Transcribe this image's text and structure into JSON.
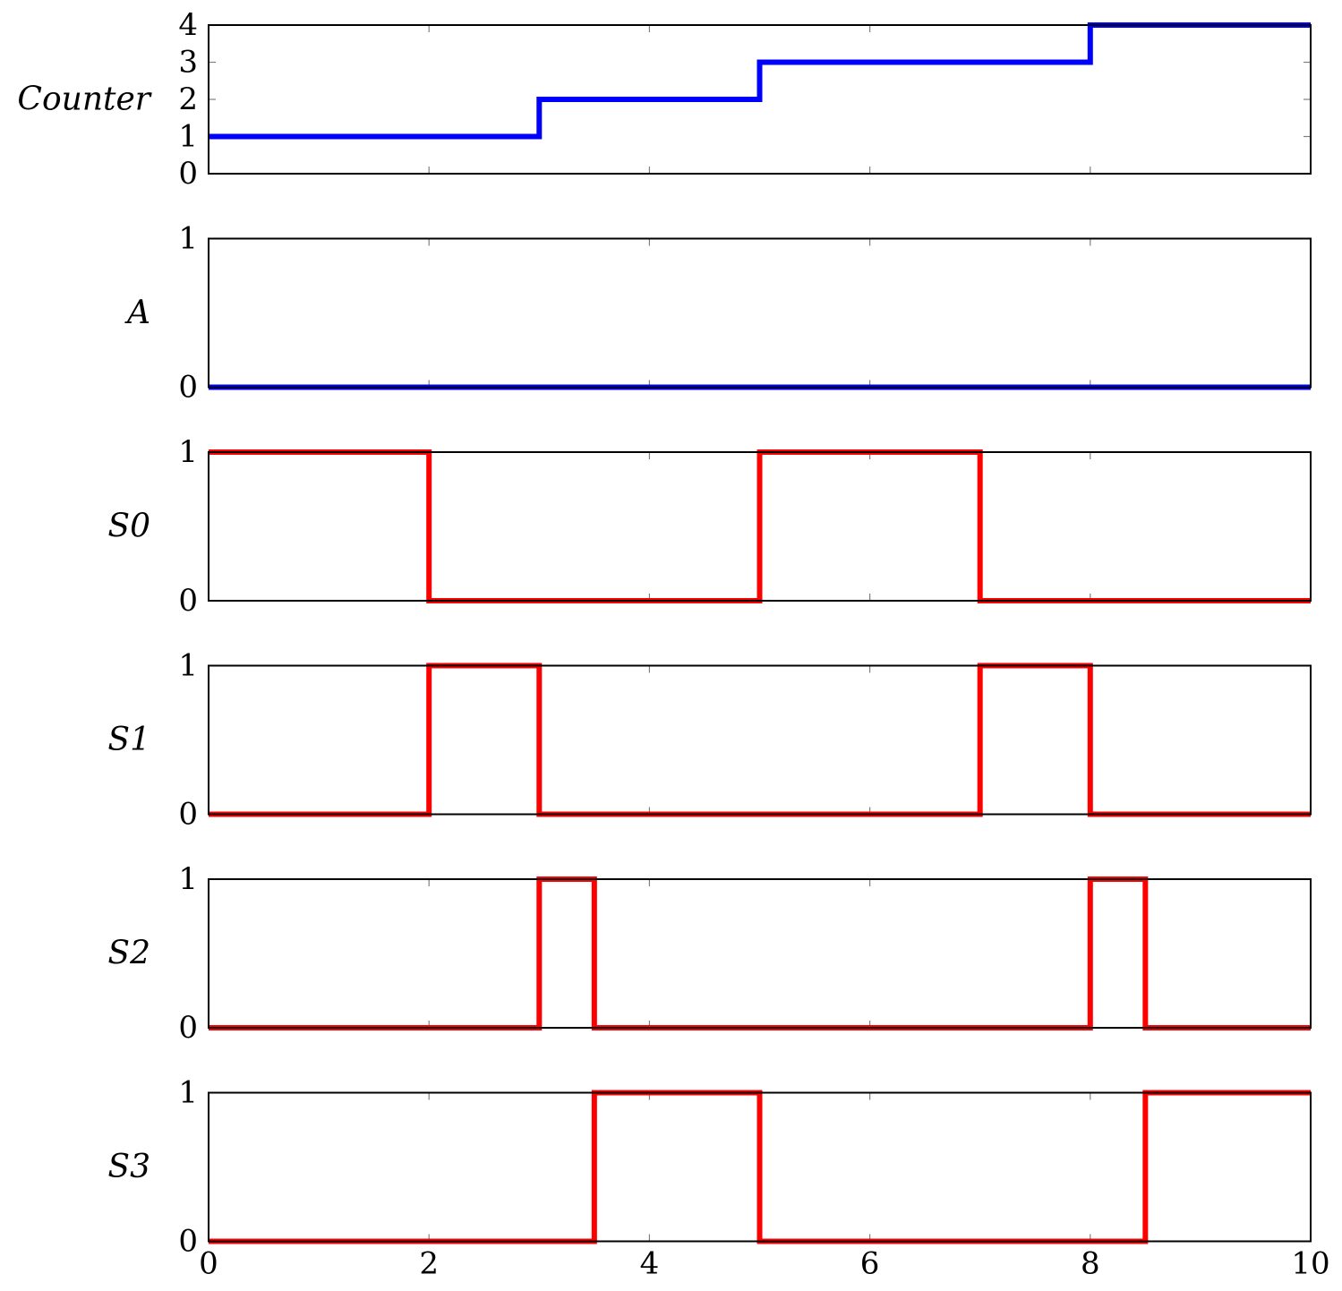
{
  "chart_data": {
    "type": "line",
    "step": true,
    "xlim": [
      0,
      10
    ],
    "x_ticks": [
      0,
      2,
      4,
      6,
      8,
      10
    ],
    "grid": false,
    "panels": [
      {
        "ylabel": "Counter",
        "ylim": [
          0,
          4
        ],
        "y_ticks": [
          0,
          1,
          2,
          3,
          4
        ],
        "color": "#0000ff",
        "points": [
          [
            0,
            1
          ],
          [
            3,
            1
          ],
          [
            3,
            2
          ],
          [
            5,
            2
          ],
          [
            5,
            3
          ],
          [
            8,
            3
          ],
          [
            8,
            4
          ],
          [
            10,
            4
          ]
        ]
      },
      {
        "ylabel": "A",
        "ylim": [
          0,
          1
        ],
        "y_ticks": [
          0,
          1
        ],
        "color": "#0000ff",
        "points": [
          [
            0,
            0
          ],
          [
            10,
            0
          ]
        ]
      },
      {
        "ylabel": "S0",
        "ylim": [
          0,
          1
        ],
        "y_ticks": [
          0,
          1
        ],
        "color": "#ff0000",
        "points": [
          [
            0,
            1
          ],
          [
            2,
            1
          ],
          [
            2,
            0
          ],
          [
            5,
            0
          ],
          [
            5,
            1
          ],
          [
            7,
            1
          ],
          [
            7,
            0
          ],
          [
            10,
            0
          ]
        ]
      },
      {
        "ylabel": "S1",
        "ylim": [
          0,
          1
        ],
        "y_ticks": [
          0,
          1
        ],
        "color": "#ff0000",
        "points": [
          [
            0,
            0
          ],
          [
            2,
            0
          ],
          [
            2,
            1
          ],
          [
            3,
            1
          ],
          [
            3,
            0
          ],
          [
            7,
            0
          ],
          [
            7,
            1
          ],
          [
            8,
            1
          ],
          [
            8,
            0
          ],
          [
            10,
            0
          ]
        ]
      },
      {
        "ylabel": "S2",
        "ylim": [
          0,
          1
        ],
        "y_ticks": [
          0,
          1
        ],
        "color": "#ff0000",
        "points": [
          [
            0,
            0
          ],
          [
            3,
            0
          ],
          [
            3,
            1
          ],
          [
            3.5,
            1
          ],
          [
            3.5,
            0
          ],
          [
            8,
            0
          ],
          [
            8,
            1
          ],
          [
            8.5,
            1
          ],
          [
            8.5,
            0
          ],
          [
            10,
            0
          ]
        ]
      },
      {
        "ylabel": "S3",
        "ylim": [
          0,
          1
        ],
        "y_ticks": [
          0,
          1
        ],
        "color": "#ff0000",
        "points": [
          [
            0,
            0
          ],
          [
            3.5,
            0
          ],
          [
            3.5,
            1
          ],
          [
            5,
            1
          ],
          [
            5,
            0
          ],
          [
            8.5,
            0
          ],
          [
            8.5,
            1
          ],
          [
            10,
            1
          ]
        ]
      }
    ]
  }
}
